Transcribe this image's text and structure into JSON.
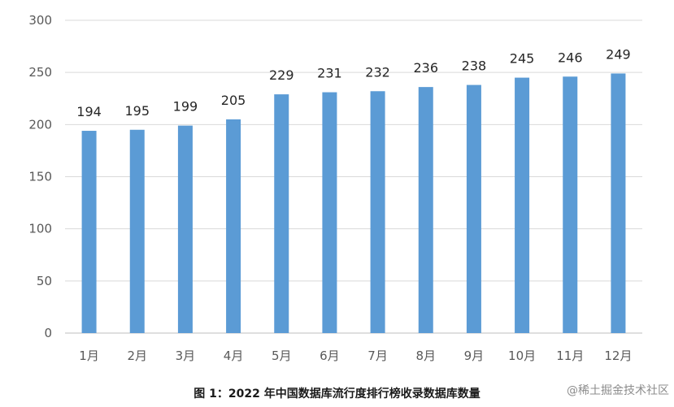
{
  "chart_data": {
    "type": "bar",
    "title": "图 1：2022 年中国数据库流行度排行榜收录数据库数量",
    "xlabel": "",
    "ylabel": "",
    "categories": [
      "1月",
      "2月",
      "3月",
      "4月",
      "5月",
      "6月",
      "7月",
      "8月",
      "9月",
      "10月",
      "11月",
      "12月"
    ],
    "values": [
      194,
      195,
      199,
      205,
      229,
      231,
      232,
      236,
      238,
      245,
      246,
      249
    ],
    "ylim": [
      0,
      300
    ],
    "yticks": [
      0,
      50,
      100,
      150,
      200,
      250,
      300
    ],
    "grid": true,
    "legend": "none",
    "bar_color": "#5b9bd5"
  },
  "watermark": "@稀土掘金技术社区"
}
